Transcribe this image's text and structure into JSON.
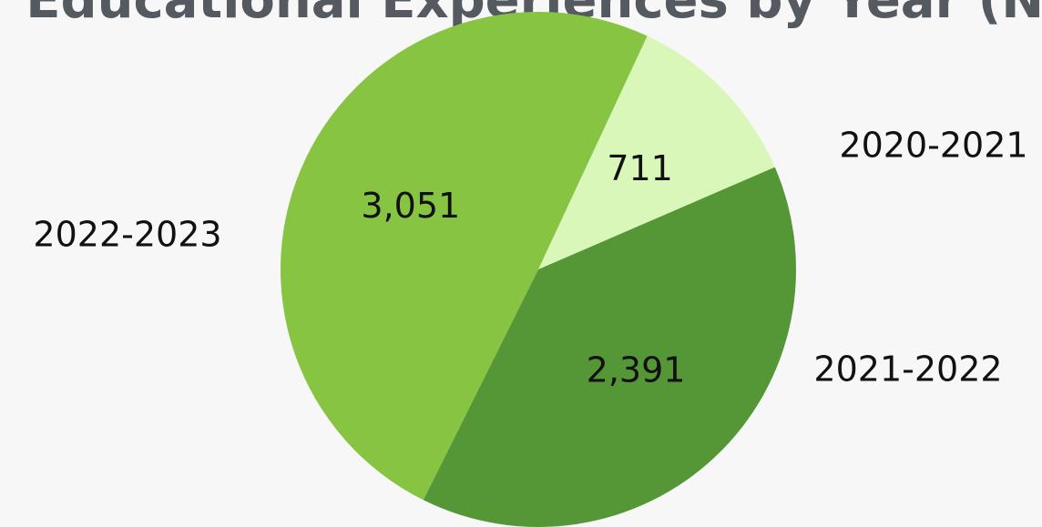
{
  "chart_data": {
    "type": "pie",
    "title": "Educational Experiences by Year (N)",
    "categories": [
      "2020-2021",
      "2021-2022",
      "2022-2023"
    ],
    "values": [
      711,
      2391,
      3051
    ],
    "value_labels": [
      "711",
      "2,391",
      "3,051"
    ],
    "colors": [
      "#d9f7b8",
      "#559636",
      "#86c442"
    ]
  }
}
